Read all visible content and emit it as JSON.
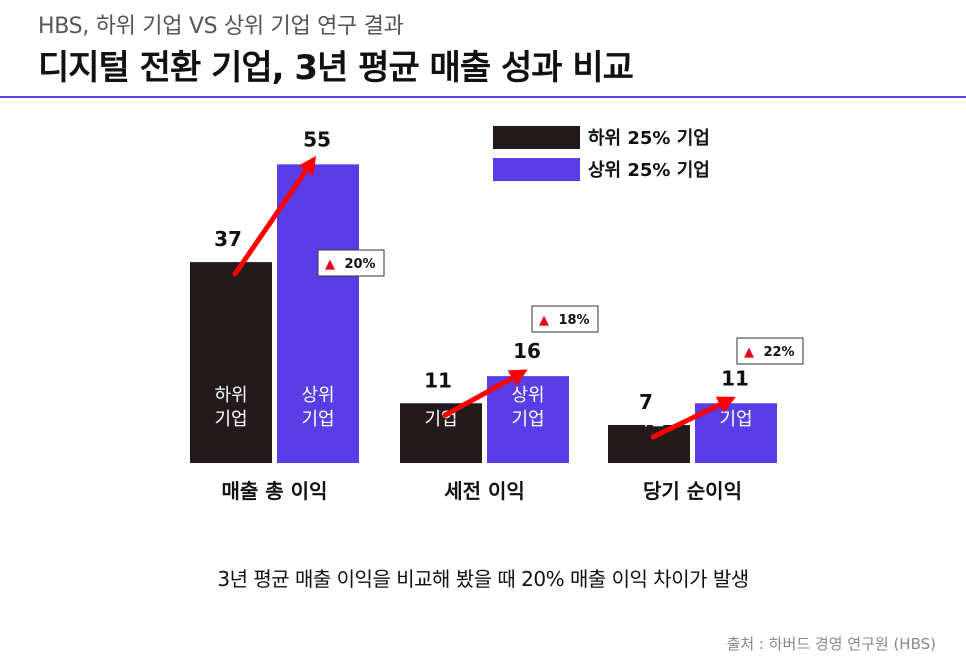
{
  "header": {
    "subtitle": "HBS, 하위 기업 VS 상위 기업 연구 결과",
    "title": "디지털 전환 기업, 3년 평균 매출 성과 비교"
  },
  "chart_data": {
    "type": "bar",
    "categories": [
      "매출 총 이익",
      "세전 이익",
      "당기 순이익"
    ],
    "series": [
      {
        "name": "하위 25% 기업",
        "color": "#231a1c",
        "bar_label": [
          "하위",
          "기업"
        ],
        "values": [
          37,
          11,
          7
        ]
      },
      {
        "name": "상위 25% 기업",
        "color": "#5a3de6",
        "bar_label": [
          "상위",
          "기업"
        ],
        "values": [
          55,
          16,
          11
        ]
      }
    ],
    "annotations": [
      "▲ 20%",
      "▲ 18%",
      "▲ 22%"
    ],
    "annotation_color": "#e8001c",
    "arrow_color": "#ff0000",
    "legend_position": "top-right",
    "ylim": [
      0,
      70
    ]
  },
  "footer": {
    "summary": "3년 평균 매출 이익을 비교해 봤을 때  20% 매출 이익 차이가 발생",
    "source": "출처 : 하버드 경영 연구원 (HBS)"
  }
}
